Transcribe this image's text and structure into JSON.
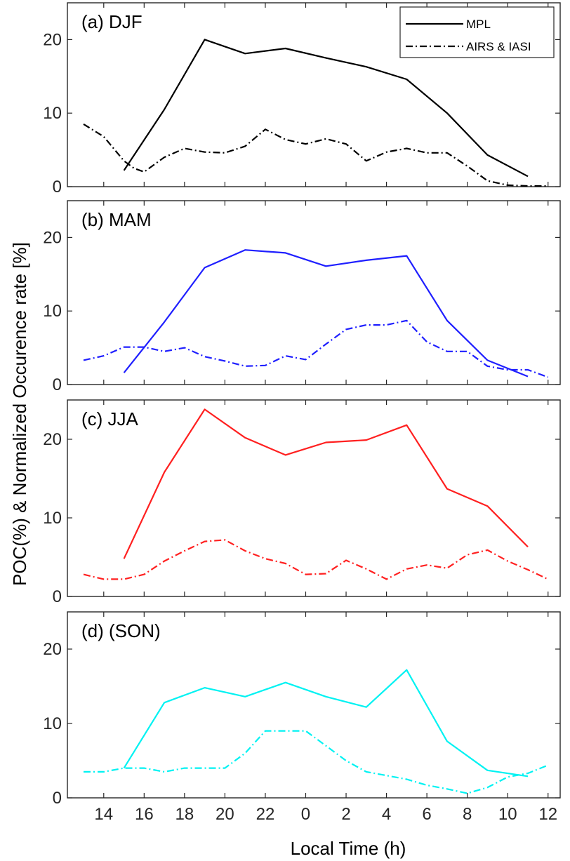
{
  "chart_data": {
    "type": "line",
    "ylabel": "POC(%) & Normalized Occurence rate [%]",
    "xlabel": "Local Time (h)",
    "x_ticks": [
      "14",
      "16",
      "18",
      "20",
      "22",
      "0",
      "2",
      "4",
      "6",
      "8",
      "10",
      "12"
    ],
    "x_range_hours": [
      12.2,
      36.6
    ],
    "ylim": [
      0,
      25
    ],
    "y_ticks": [
      0,
      10,
      20
    ],
    "legend": {
      "position": "top-right",
      "entries": [
        {
          "label": "MPL",
          "style": "solid"
        },
        {
          "label": "AIRS & IASI",
          "style": "dashdot"
        }
      ]
    },
    "panels": [
      {
        "label": "(a) DJF",
        "color": "#000000",
        "series": [
          {
            "name": "MPL",
            "style": "solid",
            "x": [
              15,
              17,
              19,
              21,
              23,
              25,
              27,
              29,
              31,
              33,
              35
            ],
            "y": [
              2.2,
              10.5,
              20.0,
              18.1,
              18.8,
              17.5,
              16.3,
              14.6,
              10.0,
              4.3,
              1.4
            ]
          },
          {
            "name": "AIRS & IASI",
            "style": "dashdot",
            "x": [
              13,
              14,
              15,
              15.5,
              16,
              17,
              18,
              19,
              20,
              21,
              22,
              23,
              24,
              25,
              26,
              27,
              28,
              29,
              30,
              31,
              32,
              33,
              34,
              35,
              36
            ],
            "y": [
              8.5,
              6.8,
              3.5,
              2.5,
              2.0,
              4.0,
              5.2,
              4.7,
              4.6,
              5.5,
              7.8,
              6.4,
              5.8,
              6.5,
              5.8,
              3.5,
              4.7,
              5.2,
              4.6,
              4.6,
              2.8,
              0.8,
              0.2,
              0.1,
              0.1
            ]
          }
        ]
      },
      {
        "label": "(b) MAM",
        "color": "#1f1fff",
        "series": [
          {
            "name": "MPL",
            "style": "solid",
            "x": [
              15,
              17,
              19,
              21,
              23,
              25,
              27,
              29,
              31,
              33,
              35
            ],
            "y": [
              1.6,
              8.5,
              15.9,
              18.3,
              17.9,
              16.1,
              16.9,
              17.5,
              8.7,
              3.3,
              1.1
            ]
          },
          {
            "name": "AIRS & IASI",
            "style": "dashdot",
            "x": [
              13,
              14,
              15,
              16,
              17,
              18,
              19,
              20,
              21,
              22,
              23,
              24,
              25,
              26,
              27,
              28,
              29,
              30,
              31,
              32,
              33,
              34,
              35,
              36
            ],
            "y": [
              3.3,
              3.9,
              5.1,
              5.1,
              4.5,
              5.0,
              3.8,
              3.2,
              2.5,
              2.6,
              3.9,
              3.4,
              5.5,
              7.5,
              8.1,
              8.1,
              8.7,
              5.8,
              4.5,
              4.5,
              2.5,
              2.0,
              2.0,
              1.0
            ]
          }
        ]
      },
      {
        "label": "(c) JJA",
        "color": "#ff2020",
        "series": [
          {
            "name": "MPL",
            "style": "solid",
            "x": [
              15,
              17,
              19,
              21,
              23,
              25,
              27,
              29,
              31,
              33,
              35
            ],
            "y": [
              4.8,
              15.8,
              23.8,
              20.2,
              18.0,
              19.6,
              19.9,
              21.8,
              13.7,
              11.5,
              6.3
            ]
          },
          {
            "name": "AIRS & IASI",
            "style": "dashdot",
            "x": [
              13,
              14,
              15,
              16,
              17,
              18,
              19,
              20,
              21,
              22,
              23,
              24,
              25,
              26,
              27,
              28,
              29,
              30,
              31,
              32,
              33,
              34,
              35,
              36
            ],
            "y": [
              2.8,
              2.2,
              2.2,
              2.8,
              4.5,
              5.8,
              7.0,
              7.2,
              5.8,
              4.8,
              4.2,
              2.8,
              2.9,
              4.6,
              3.5,
              2.2,
              3.5,
              4.0,
              3.6,
              5.3,
              5.9,
              4.5,
              3.4,
              2.2
            ]
          }
        ]
      },
      {
        "label": "(d) (SON)",
        "color": "#00f2f2",
        "series": [
          {
            "name": "MPL",
            "style": "solid",
            "x": [
              15,
              17,
              19,
              21,
              23,
              25,
              27,
              29,
              31,
              33,
              35
            ],
            "y": [
              4.0,
              12.8,
              14.8,
              13.6,
              15.5,
              13.6,
              12.2,
              17.2,
              7.6,
              3.7,
              2.9
            ]
          },
          {
            "name": "AIRS & IASI",
            "style": "dashdot",
            "x": [
              13,
              14,
              15,
              16,
              17,
              18,
              19,
              20,
              21,
              22,
              23,
              24,
              25,
              26,
              27,
              28,
              29,
              30,
              31,
              32,
              33,
              34,
              35,
              36
            ],
            "y": [
              3.5,
              3.5,
              4.0,
              4.0,
              3.5,
              4.0,
              4.0,
              4.0,
              6.0,
              9.0,
              9.0,
              9.0,
              7.0,
              5.0,
              3.5,
              3.0,
              2.5,
              1.7,
              1.2,
              0.6,
              1.4,
              2.8,
              3.3,
              4.4
            ]
          }
        ]
      }
    ]
  }
}
